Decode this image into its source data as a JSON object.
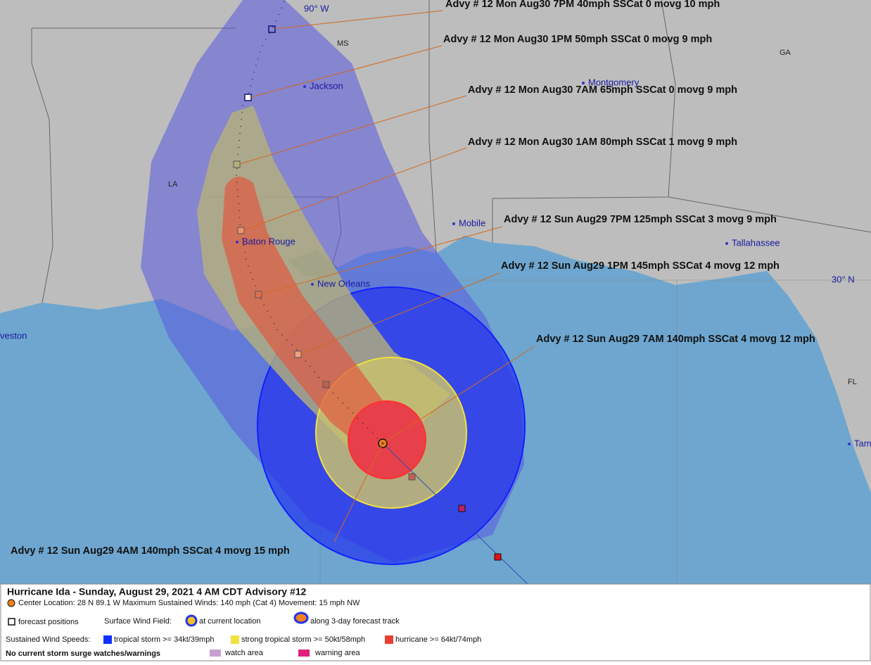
{
  "map": {
    "labels": [
      "90° W",
      "MS",
      "GA",
      "Jackson",
      "Montgomery",
      "LA",
      "Mobile",
      "Baton Rouge",
      "Tallahassee",
      "New Orleans",
      "30° N",
      "veston",
      "FL",
      "Tam"
    ],
    "advisories": [
      "Advy # 12 Mon Aug30 7PM  40mph SSCat 0 movg 10 mph",
      "Advy # 12 Mon Aug30 1PM  50mph SSCat 0 movg 9 mph",
      "Advy # 12 Mon Aug30 7AM  65mph SSCat 0 movg 9 mph",
      "Advy # 12 Mon Aug30 1AM  80mph SSCat 1 movg 9 mph",
      "Advy # 12 Sun Aug29 7PM  125mph SSCat 3 movg 9 mph",
      "Advy # 12 Sun Aug29 1PM  145mph SSCat 4 movg 12 mph",
      "Advy # 12 Sun Aug29 7AM  140mph SSCat 4 movg 12 mph",
      "Advy # 12 Sun Aug29 4AM  140mph SSCat 4 movg 15 mph"
    ]
  },
  "legend": {
    "title": "Hurricane Ida  -  Sunday, August 29, 2021  4 AM CDT   Advisory #12",
    "center": "Center Location: 28 N  89.1 W   Maximum Sustained Winds: 140 mph (Cat 4) Movement: 15 mph NW",
    "forecast_positions": "forecast positions",
    "wind_field": "Surface Wind Field:",
    "at_current": "at current location",
    "along_track": "along 3-day forecast track",
    "speeds": "Sustained Wind Speeds:",
    "tropical": "tropical storm >= 34kt/39mph",
    "strong": "strong tropical storm >= 50kt/58mph",
    "hurricane": "hurricane >= 64kt/74mph",
    "surge": "No current storm surge watches/warnings",
    "watch": "watch area",
    "warning": "warning area"
  }
}
